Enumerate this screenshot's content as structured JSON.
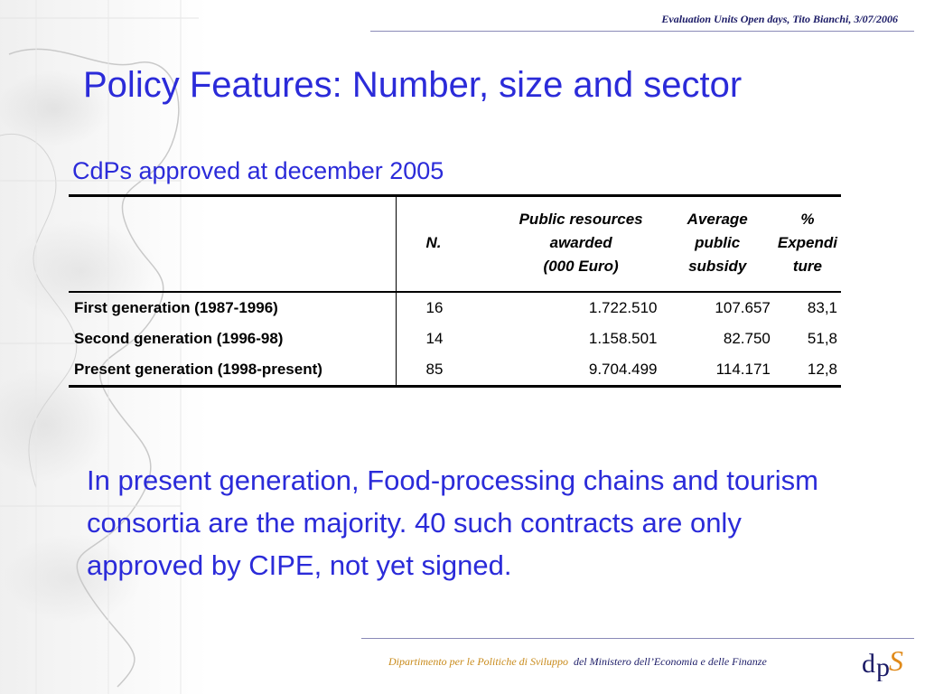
{
  "header": {
    "text": "Evaluation Units Open days, Tito Bianchi, 3/07/2006"
  },
  "title": "Policy Features: Number, size and sector",
  "subtitle": "CdPs approved at december 2005",
  "table": {
    "headers": {
      "n": "N.",
      "public_resources": [
        "Public resources",
        "awarded",
        "(000 Euro)"
      ],
      "average": [
        "Average",
        "public",
        "subsidy"
      ],
      "percent": [
        "%",
        "Expendi",
        "ture"
      ]
    },
    "rows": [
      {
        "label": "First generation (1987-1996)",
        "n": "16",
        "public": "1.722.510",
        "average": "107.657",
        "percent": "83,1"
      },
      {
        "label": "Second generation (1996-98)",
        "n": "14",
        "public": "1.158.501",
        "average": "82.750",
        "percent": "51,8"
      },
      {
        "label": "Present generation (1998-present)",
        "n": "85",
        "public": "9.704.499",
        "average": "114.171",
        "percent": "12,8"
      }
    ]
  },
  "body": "In present generation, Food-processing chains and tourism consortia are the majority. 40 such contracts are only approved by CIPE, not yet signed.",
  "footer": {
    "department": "Dipartimento per le Politiche di Sviluppo",
    "ministry": "del Ministero dell’Economia e delle Finanze"
  },
  "logo": {
    "letters": "dps",
    "colors": {
      "d": "#1a1a66",
      "p": "#1a1a66",
      "s": "#e08a1a"
    }
  },
  "colors": {
    "accent": "#2b2bd9",
    "header": "#1a1a66"
  }
}
